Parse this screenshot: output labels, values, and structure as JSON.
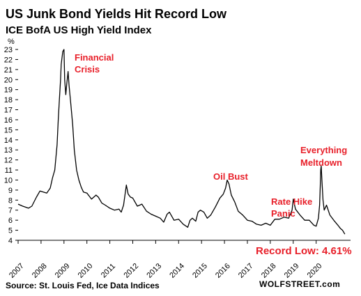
{
  "chart_data": {
    "type": "line",
    "title": "US Junk Bond Yields Hit Record Low",
    "subtitle": "ICE BofA US High Yield Index",
    "ylabel": "%",
    "ylim": [
      4,
      23
    ],
    "yticks": [
      "4",
      "5",
      "6",
      "7",
      "8",
      "9",
      "10",
      "11",
      "12",
      "13",
      "14",
      "15",
      "16",
      "17",
      "18",
      "19",
      "20",
      "21",
      "22",
      "23"
    ],
    "xlim": [
      2007,
      2021.5
    ],
    "xticks": [
      "2007",
      "2008",
      "2009",
      "2010",
      "2011",
      "2012",
      "2013",
      "2014",
      "2015",
      "2016",
      "2017",
      "2018",
      "2019",
      "2020"
    ],
    "grid": false,
    "series": [
      {
        "color": "#000000",
        "x": [
          2007.0,
          2007.2,
          2007.45,
          2007.6,
          2007.8,
          2007.95,
          2008.1,
          2008.25,
          2008.4,
          2008.5,
          2008.6,
          2008.7,
          2008.75,
          2008.8,
          2008.85,
          2008.88,
          2008.92,
          2008.95,
          2009.0,
          2009.03,
          2009.08,
          2009.12,
          2009.18,
          2009.22,
          2009.3,
          2009.38,
          2009.45,
          2009.55,
          2009.65,
          2009.75,
          2009.85,
          2010.0,
          2010.2,
          2010.4,
          2010.5,
          2010.65,
          2010.8,
          2011.0,
          2011.2,
          2011.4,
          2011.5,
          2011.6,
          2011.72,
          2011.8,
          2011.9,
          2012.0,
          2012.2,
          2012.4,
          2012.6,
          2012.8,
          2013.0,
          2013.2,
          2013.35,
          2013.5,
          2013.6,
          2013.8,
          2014.0,
          2014.2,
          2014.4,
          2014.5,
          2014.6,
          2014.75,
          2014.85,
          2014.95,
          2015.1,
          2015.25,
          2015.4,
          2015.6,
          2015.8,
          2015.95,
          2016.05,
          2016.12,
          2016.2,
          2016.3,
          2016.45,
          2016.6,
          2016.8,
          2017.0,
          2017.2,
          2017.4,
          2017.6,
          2017.8,
          2018.0,
          2018.2,
          2018.4,
          2018.6,
          2018.8,
          2018.95,
          2019.0,
          2019.1,
          2019.3,
          2019.5,
          2019.7,
          2019.9,
          2020.0,
          2020.1,
          2020.15,
          2020.18,
          2020.2,
          2020.22,
          2020.25,
          2020.3,
          2020.35,
          2020.45,
          2020.6,
          2020.8,
          2020.95,
          2021.05,
          2021.15,
          2021.25
        ],
        "y": [
          7.6,
          7.4,
          7.2,
          7.4,
          8.3,
          8.9,
          8.8,
          8.7,
          9.2,
          10.2,
          11.0,
          13.5,
          16.0,
          18.0,
          20.0,
          21.5,
          22.3,
          22.8,
          23.0,
          20.0,
          18.5,
          19.5,
          20.8,
          19.5,
          17.5,
          15.5,
          13.0,
          11.0,
          10.0,
          9.3,
          8.8,
          8.7,
          8.1,
          8.5,
          8.3,
          7.7,
          7.5,
          7.2,
          7.0,
          7.1,
          6.8,
          7.5,
          9.5,
          8.6,
          8.3,
          8.2,
          7.4,
          7.6,
          6.9,
          6.6,
          6.4,
          6.2,
          5.8,
          6.6,
          6.8,
          6.0,
          6.1,
          5.6,
          5.3,
          6.0,
          6.2,
          5.9,
          6.8,
          7.0,
          6.8,
          6.2,
          6.5,
          7.3,
          8.2,
          8.6,
          9.2,
          10.0,
          9.6,
          8.5,
          7.8,
          6.9,
          6.5,
          6.0,
          5.9,
          5.6,
          5.5,
          5.7,
          5.5,
          6.1,
          6.1,
          6.3,
          6.2,
          7.0,
          8.1,
          7.1,
          6.5,
          6.0,
          6.0,
          5.5,
          5.4,
          6.2,
          7.5,
          9.5,
          11.0,
          11.4,
          10.0,
          8.0,
          7.0,
          7.5,
          6.5,
          5.9,
          5.5,
          5.2,
          5.0,
          4.61
        ]
      }
    ],
    "annotations": {
      "financial_crisis": [
        "Financial",
        "Crisis"
      ],
      "oil_bust": [
        "Oil Bust"
      ],
      "rate_hike": [
        "Rate Hike",
        "Panic"
      ],
      "meltdown": [
        "Everything",
        "Meltdown"
      ],
      "record_low": "Record Low: 4.61%"
    },
    "source": "Source: St. Louis Fed, Ice Data Indices",
    "brand": "WOLFSTREET.com"
  }
}
